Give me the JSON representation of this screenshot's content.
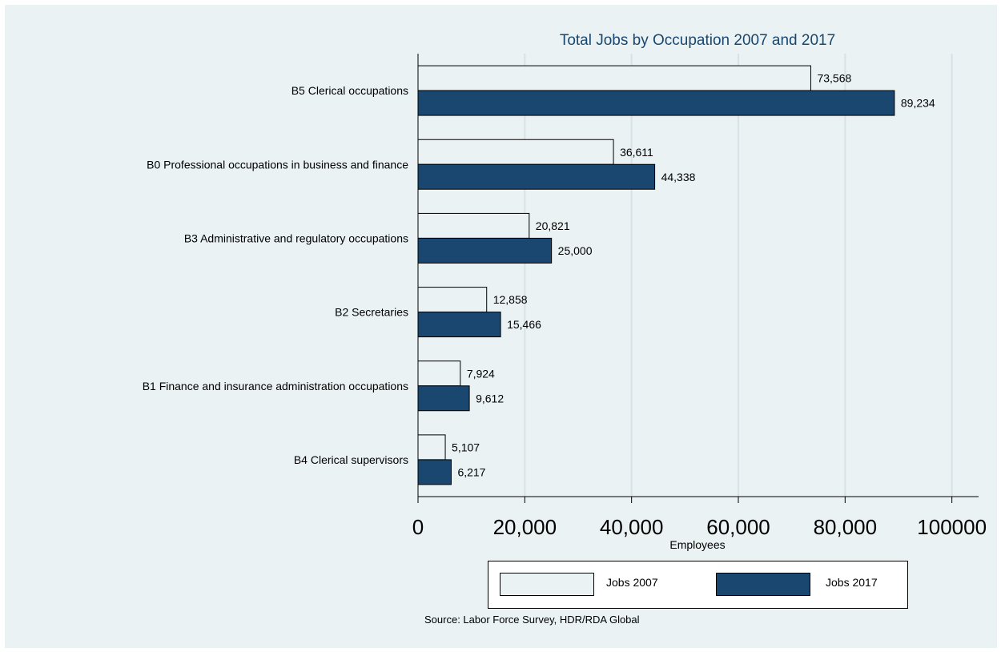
{
  "chart_data": {
    "type": "bar",
    "orientation": "horizontal",
    "title": "Total Jobs by Occupation 2007 and 2017",
    "xlabel": "Employees",
    "categories": [
      "B5 Clerical occupations",
      "B0 Professional occupations in business and finance",
      "B3 Administrative and regulatory occupations",
      "B2 Secretaries",
      "B1 Finance and insurance administration occupations",
      "B4 Clerical supervisors"
    ],
    "series": [
      {
        "name": "Jobs 2007",
        "values": [
          73568,
          36611,
          20821,
          12858,
          7924,
          5107
        ],
        "labels": [
          "73,568",
          "36,611",
          "20,821",
          "12,858",
          "7,924",
          "5,107"
        ],
        "color": "#eaf2f3"
      },
      {
        "name": "Jobs 2017",
        "values": [
          89234,
          44338,
          25000,
          15466,
          9612,
          6217
        ],
        "labels": [
          "89,234",
          "44,338",
          "25,000",
          "15,466",
          "9,612",
          "6,217"
        ],
        "color": "#1a476f"
      }
    ],
    "xlim": [
      0,
      105000
    ],
    "xticks": [
      0,
      20000,
      40000,
      60000,
      80000,
      100000
    ],
    "xtick_labels": [
      "0",
      "20,000",
      "40,000",
      "60,000",
      "80,000",
      "100000"
    ],
    "grid": true,
    "legend_position": "bottom",
    "source": "Source: Labor Force Survey, HDR/RDA Global"
  },
  "colors": {
    "background": "#eaf2f3",
    "title": "#1a476f",
    "grid": "#d6e3e6"
  }
}
